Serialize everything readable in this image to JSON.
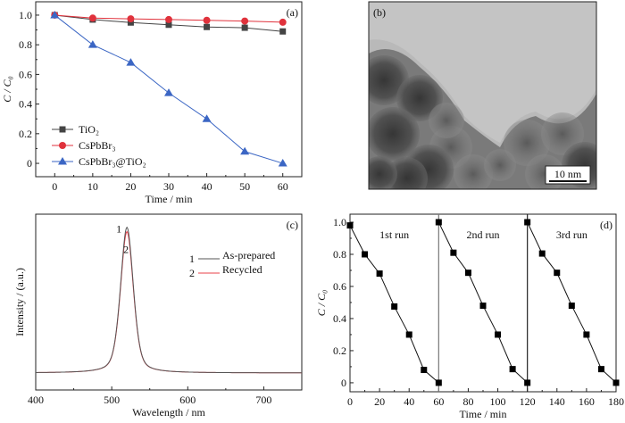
{
  "chart_data": [
    {
      "panel": "(a)",
      "type": "line",
      "xlabel": "Time / min",
      "ylabel": "C / C₀",
      "xlim": [
        -5,
        65
      ],
      "ylim": [
        -0.09,
        1.09
      ],
      "xticks": [
        0,
        10,
        20,
        30,
        40,
        50,
        60
      ],
      "yticks": [
        0,
        0.2,
        0.4,
        0.6,
        0.8,
        1.0
      ],
      "ytick_labels": [
        "0",
        "0.2",
        "0.4",
        "0.6",
        "0.8",
        "1.0"
      ],
      "x": [
        0,
        10,
        20,
        30,
        40,
        50,
        60
      ],
      "legend_placement": "bottom-left",
      "series": [
        {
          "name": "TiO₂",
          "marker": "square",
          "color": "#444444",
          "values": [
            1.0,
            0.97,
            0.95,
            0.935,
            0.92,
            0.915,
            0.89
          ]
        },
        {
          "name": "CsPbBr₃",
          "marker": "circle",
          "color": "#e0323c",
          "values": [
            1.0,
            0.98,
            0.975,
            0.97,
            0.965,
            0.96,
            0.952
          ]
        },
        {
          "name": "CsPbBr₃@TiO₂",
          "marker": "triangle",
          "color": "#3b66c4",
          "values": [
            1.0,
            0.8,
            0.68,
            0.475,
            0.3,
            0.08,
            0.0
          ]
        }
      ]
    },
    {
      "panel": "(c)",
      "type": "line",
      "xlabel": "Wavelength / nm",
      "ylabel": "Intensity / (a.u.)",
      "xlim": [
        400,
        750
      ],
      "ylim": [
        -0.117,
        1.09
      ],
      "xticks": [
        400,
        500,
        600,
        700
      ],
      "peak_wavelength_nm": 520,
      "peak_fwhm_nm": 20,
      "legend_placement": "top-right",
      "series": [
        {
          "id": "1",
          "name": "As-prepared",
          "color": "#555555",
          "peak": 1.0
        },
        {
          "id": "2",
          "name": "Recycled",
          "color": "#e8404a",
          "peak": 0.97
        }
      ]
    },
    {
      "panel": "(d)",
      "type": "line",
      "xlabel": "Time / min",
      "ylabel": "C / C₀",
      "xlim": [
        0,
        180
      ],
      "ylim": [
        -0.056,
        1.05
      ],
      "xticks": [
        0,
        20,
        40,
        60,
        80,
        100,
        120,
        140,
        160,
        180
      ],
      "yticks": [
        0,
        0.2,
        0.4,
        0.6,
        0.8,
        1.0
      ],
      "ytick_labels": [
        "0",
        "0.2",
        "0.4",
        "0.6",
        "0.8",
        "1.0"
      ],
      "run_separators": [
        60,
        120
      ],
      "annotations": [
        "1st run",
        "2nd run",
        "3rd run"
      ],
      "series": [
        {
          "name": "1st run",
          "x": [
            0,
            10,
            20,
            30,
            40,
            50,
            60
          ],
          "values": [
            0.98,
            0.8,
            0.68,
            0.475,
            0.3,
            0.08,
            0.0
          ]
        },
        {
          "name": "2nd run",
          "x": [
            60,
            70,
            80,
            90,
            100,
            110,
            120
          ],
          "values": [
            1.0,
            0.81,
            0.685,
            0.48,
            0.3,
            0.085,
            0.0
          ]
        },
        {
          "name": "3rd run",
          "x": [
            120,
            130,
            140,
            150,
            160,
            170,
            180
          ],
          "values": [
            1.0,
            0.805,
            0.685,
            0.48,
            0.3,
            0.085,
            0.0
          ]
        }
      ]
    }
  ],
  "tem_image": {
    "panel": "(b)",
    "scale_bar": "10 nm"
  }
}
